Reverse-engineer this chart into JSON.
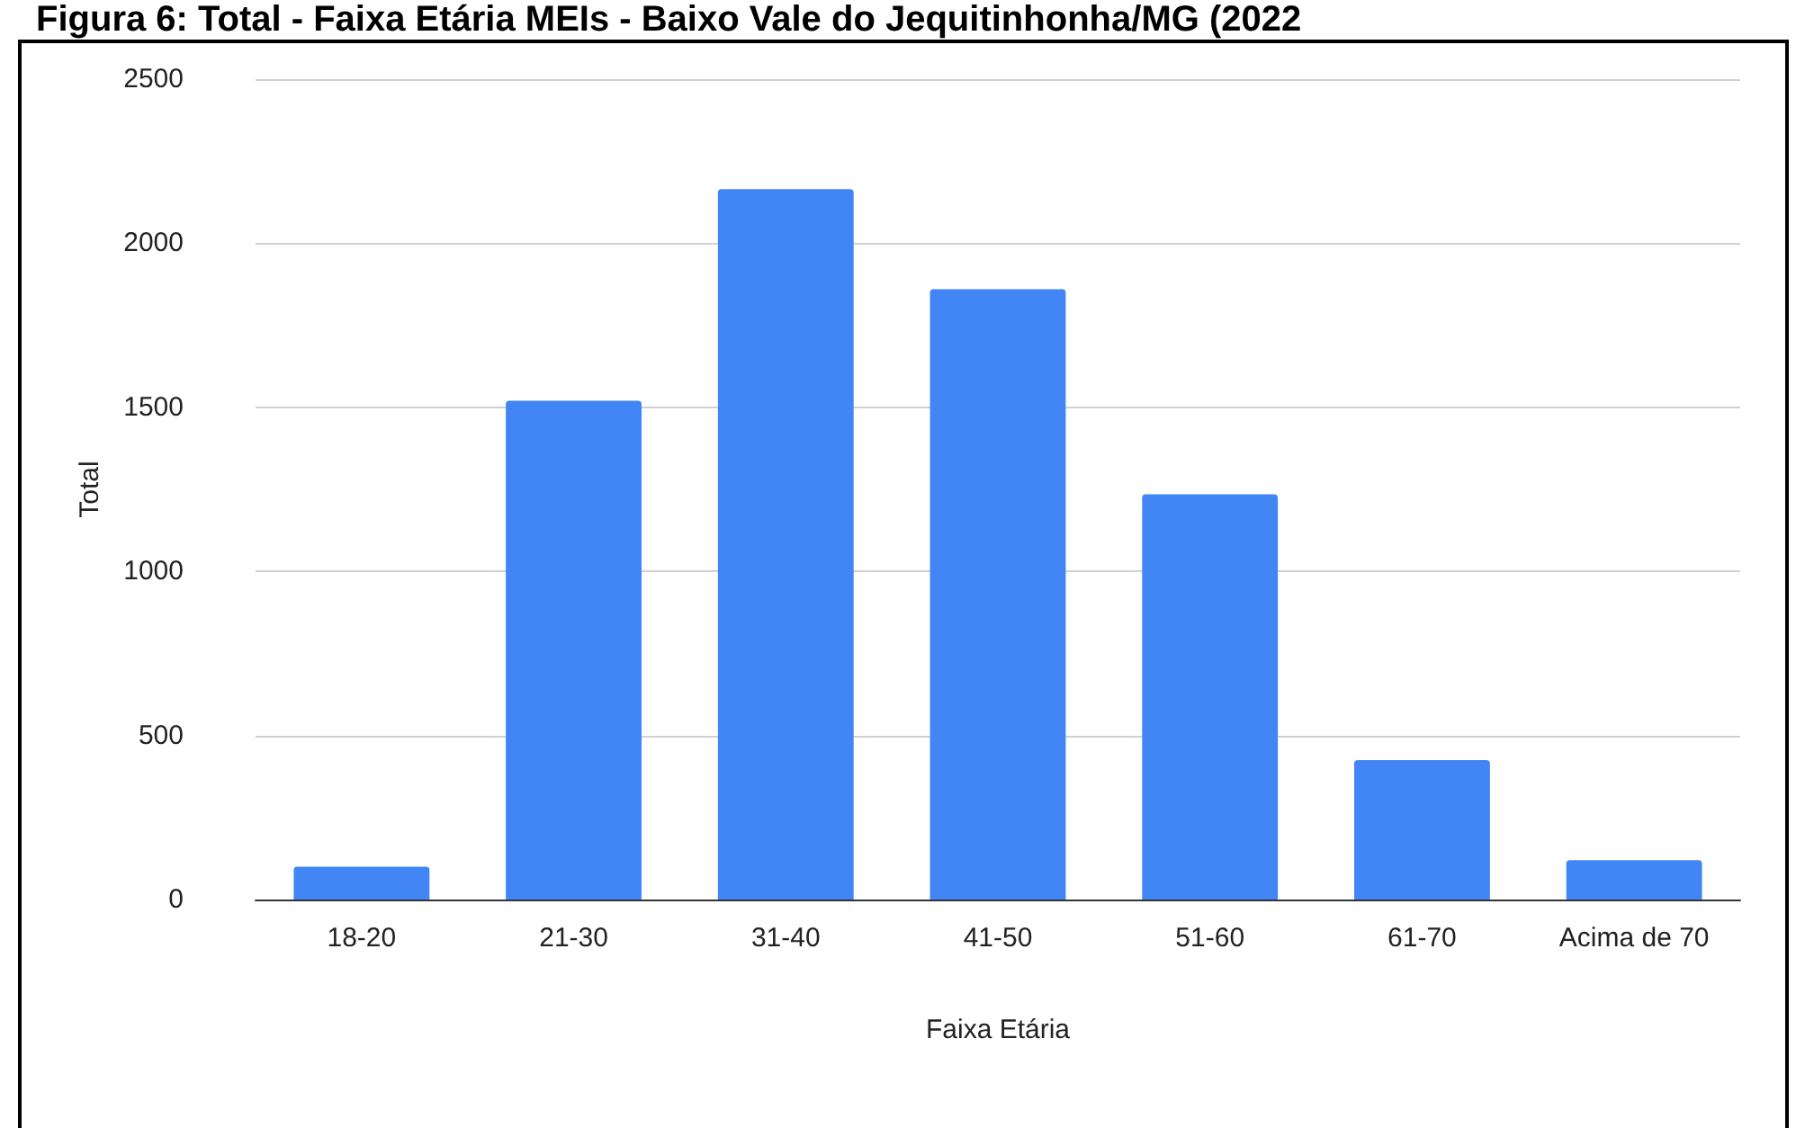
{
  "chart_data": {
    "type": "bar",
    "title": "Figura 6: Total - Faixa Etária MEIs - Baixo Vale do Jequitinhonha/MG (2022",
    "xlabel": "Faixa Etária",
    "ylabel": "Total",
    "categories": [
      "18-20",
      "21-30",
      "31-40",
      "41-50",
      "51-60",
      "61-70",
      "Acima de 70"
    ],
    "values": [
      100,
      1520,
      2165,
      1860,
      1235,
      425,
      120
    ],
    "color": "#4285f4",
    "ylim": [
      0,
      2500
    ],
    "yticks": [
      0,
      500,
      1000,
      1500,
      2000,
      2500
    ],
    "grid": "y"
  }
}
